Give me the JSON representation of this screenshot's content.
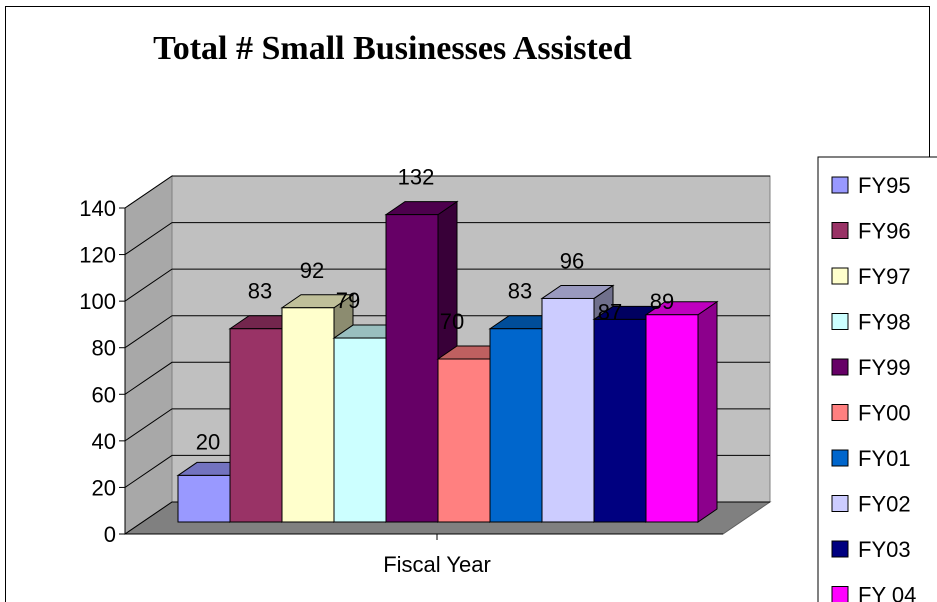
{
  "chart_data": {
    "type": "bar",
    "title": "Total # Small Businesses Assisted",
    "xlabel": "Fiscal Year",
    "ylabel": "",
    "ylim": [
      0,
      140
    ],
    "yticks": [
      0,
      20,
      40,
      60,
      80,
      100,
      120,
      140
    ],
    "grid": true,
    "three_d": true,
    "legend_position": "right",
    "series": [
      {
        "name": "FY95",
        "value": 20,
        "color": "#9999ff"
      },
      {
        "name": "FY96",
        "value": 83,
        "color": "#993366"
      },
      {
        "name": "FY97",
        "value": 92,
        "color": "#ffffcc"
      },
      {
        "name": "FY98",
        "value": 79,
        "color": "#ccffff"
      },
      {
        "name": "FY99",
        "value": 132,
        "color": "#660066"
      },
      {
        "name": "FY00",
        "value": 70,
        "color": "#ff8080"
      },
      {
        "name": "FY01",
        "value": 83,
        "color": "#0066cc"
      },
      {
        "name": "FY02",
        "value": 96,
        "color": "#ccccff"
      },
      {
        "name": "FY03",
        "value": 87,
        "color": "#000080"
      },
      {
        "name": "FY 04",
        "value": 89,
        "color": "#ff00ff"
      }
    ]
  }
}
